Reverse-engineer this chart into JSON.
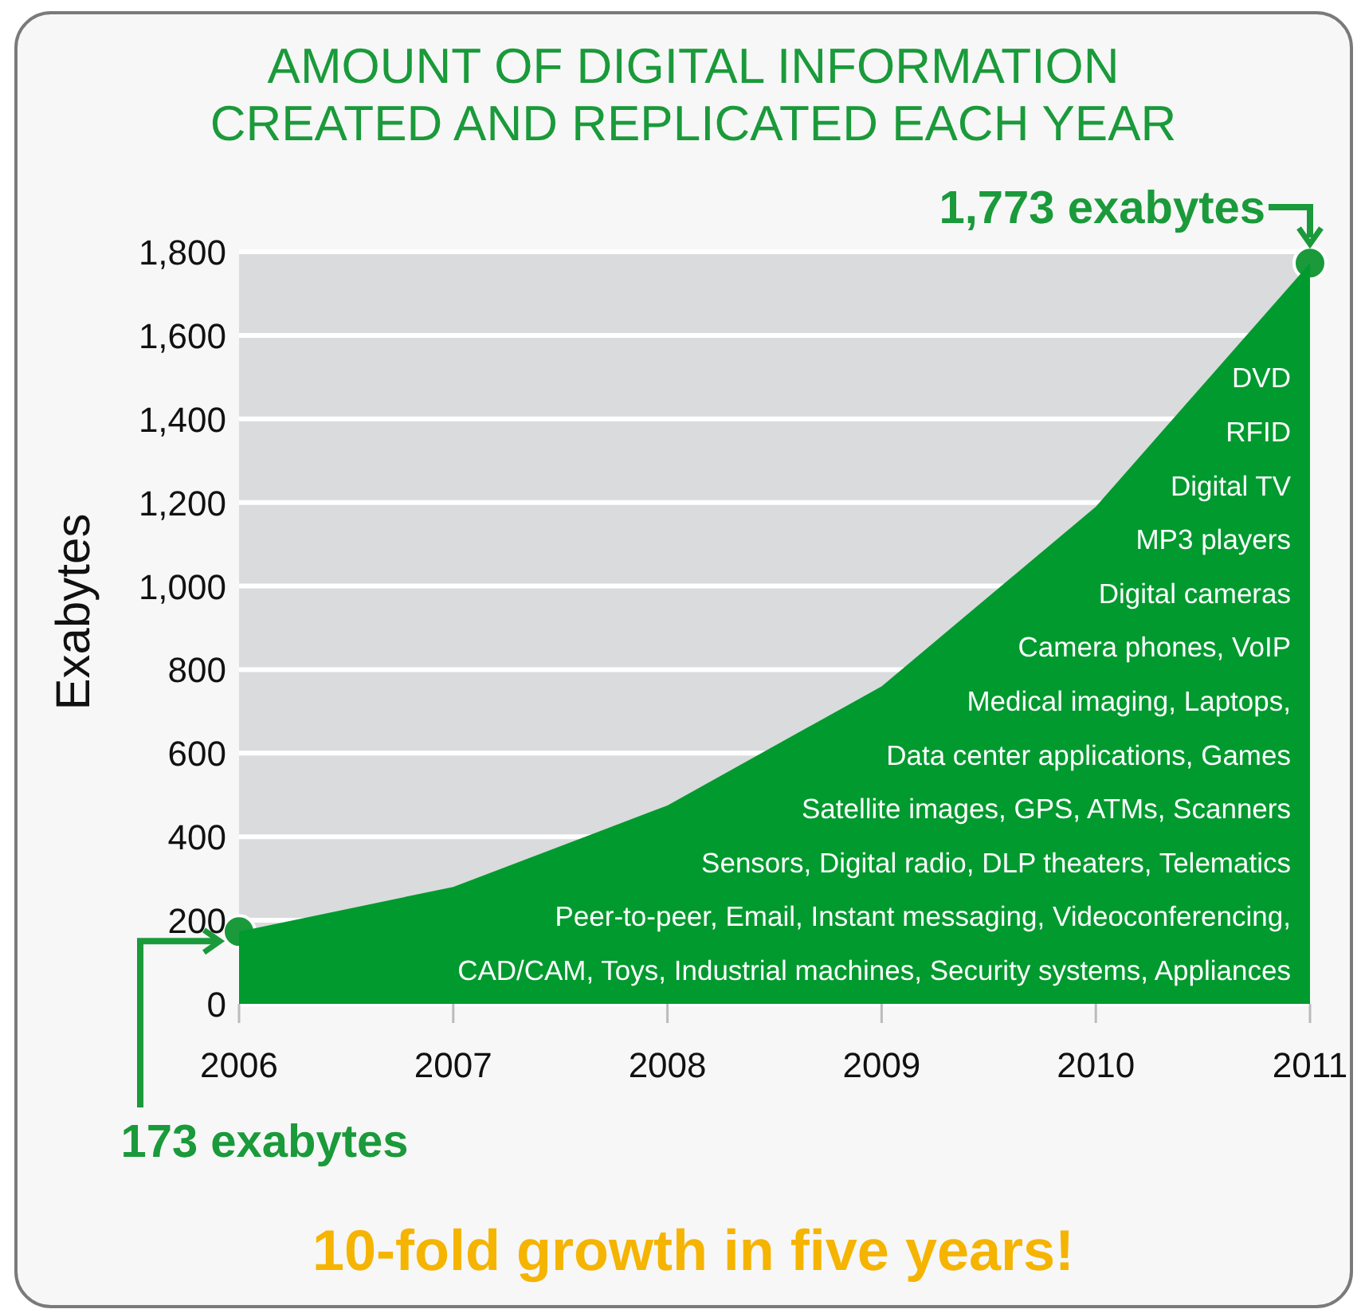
{
  "chart_data": {
    "type": "area",
    "title": "AMOUNT OF DIGITAL INFORMATION\nCREATED AND REPLICATED EACH YEAR",
    "ylabel": "Exabytes",
    "x": [
      2006,
      2007,
      2008,
      2009,
      2010,
      2011
    ],
    "series": [
      {
        "color": "#009a2e",
        "values": [
          173,
          280,
          475,
          760,
          1190,
          1773
        ]
      }
    ],
    "xlim": [
      2006,
      2011
    ],
    "xticks": [
      2006,
      2007,
      2008,
      2009,
      2010,
      2011
    ],
    "ylim": [
      0,
      1800
    ],
    "yticks": [
      {
        "value": 0,
        "label": "0"
      },
      {
        "value": 200,
        "label": "200"
      },
      {
        "value": 400,
        "label": "400"
      },
      {
        "value": 600,
        "label": "600"
      },
      {
        "value": 800,
        "label": "800"
      },
      {
        "value": 1000,
        "label": "1,000"
      },
      {
        "value": 1200,
        "label": "1,200"
      },
      {
        "value": 1400,
        "label": "1,400"
      },
      {
        "value": 1600,
        "label": "1,600"
      },
      {
        "value": 1800,
        "label": "1,800"
      }
    ],
    "grid": "y",
    "marker": "none",
    "annotations": [
      {
        "text": "1,773 exabytes",
        "x": 2011,
        "y": 1773
      },
      "173 exabytes",
      "DVD",
      "RFID",
      "Digital TV",
      "MP3 players",
      "Digital cameras",
      "Camera phones, VoIP",
      "Medical imaging, Laptops,",
      "Data center applications, Games",
      "Satellite images, GPS, ATMs, Scanners",
      "Sensors, Digital radio, DLP theaters, Telematics",
      "Peer-to-peer, Email, Instant messaging, Videoconferencing,",
      "CAD/CAM, Toys, Industrial machines, Security systems, Appliances",
      "10-fold growth in five years!"
    ]
  }
}
